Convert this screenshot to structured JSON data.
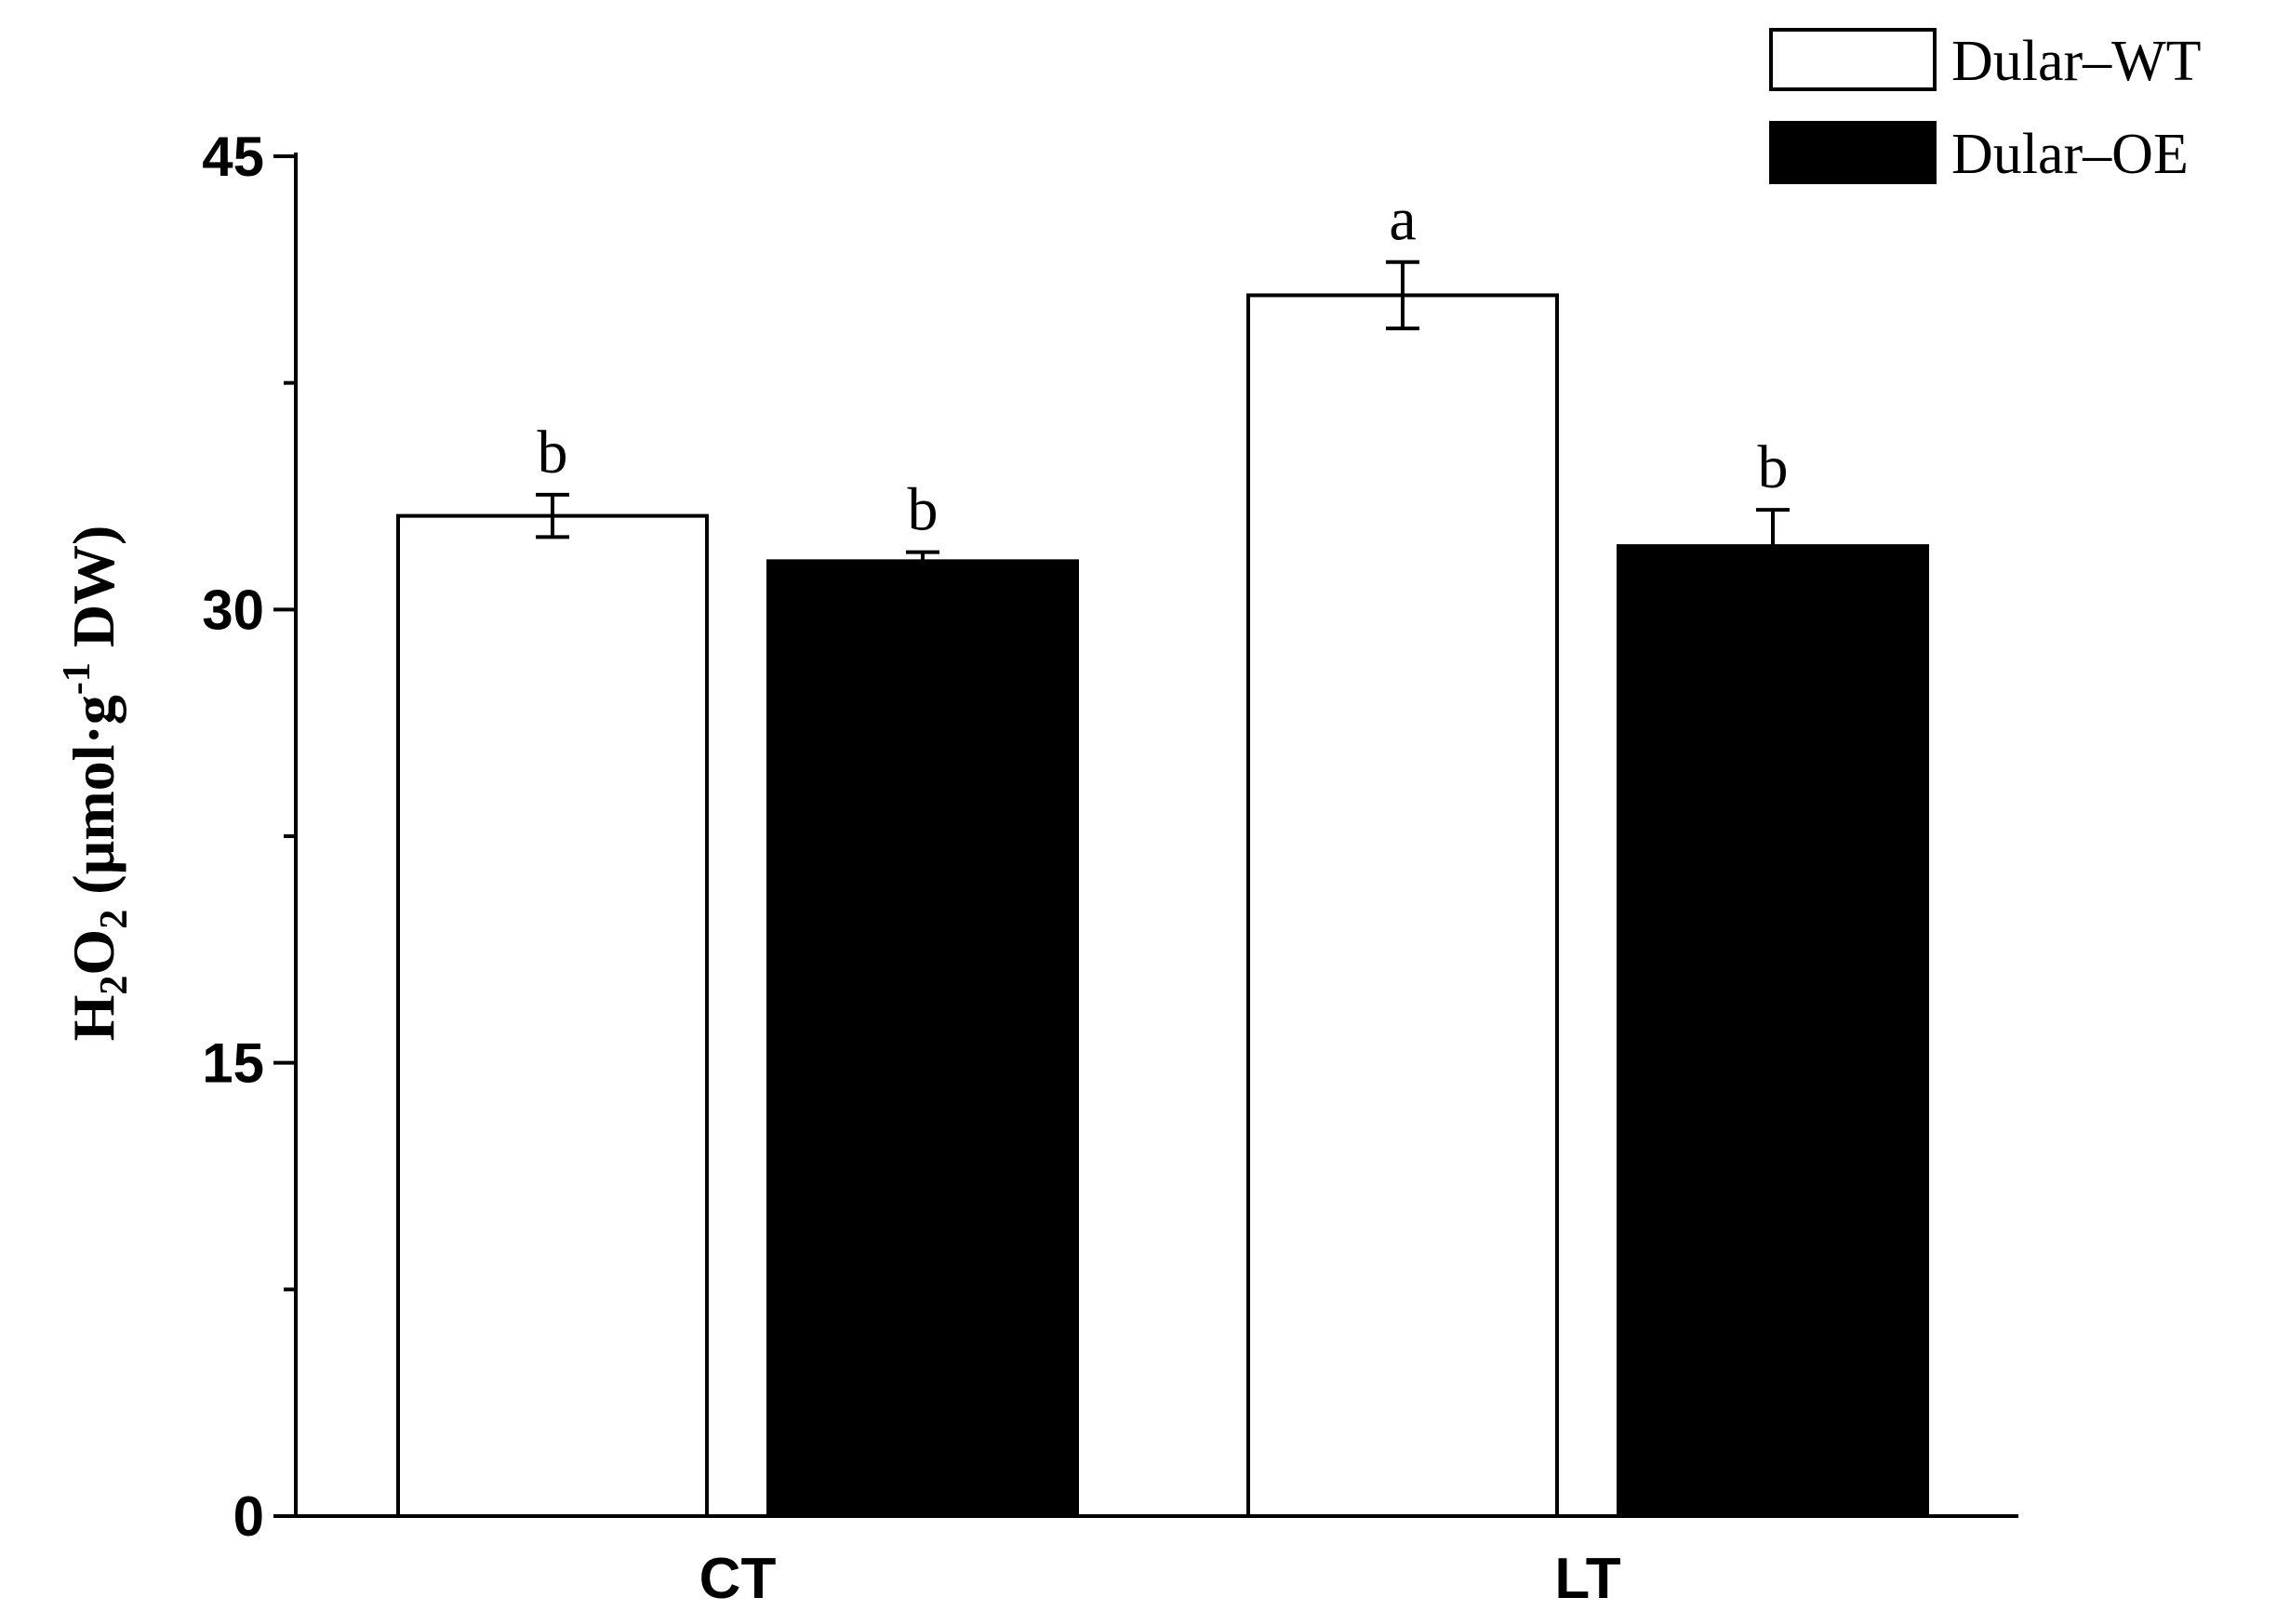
{
  "chart_data": {
    "type": "bar",
    "categories": [
      "CT",
      "LT"
    ],
    "series": [
      {
        "name": "Dular–WT",
        "fill": "#ffffff",
        "values": [
          33.1,
          40.4
        ],
        "errors": [
          0.7,
          1.1
        ],
        "sig": [
          "b",
          "a"
        ]
      },
      {
        "name": "Dular–OE",
        "fill": "#000000",
        "values": [
          31.6,
          32.1
        ],
        "errors": [
          0.3,
          1.2
        ],
        "sig": [
          "b",
          "b"
        ]
      }
    ],
    "ylabel": {
      "main": "H",
      "sub1": "2",
      "mid": "O",
      "sub2": "2",
      "unit_open": " (µmol·g",
      "sup": "-1",
      "unit_close": " DW)"
    },
    "ylim": [
      0,
      45
    ],
    "yticks": [
      0,
      15,
      30,
      45
    ],
    "yminor": [
      7.5,
      22.5,
      37.5
    ],
    "grid": false,
    "legend_position": "top-right"
  }
}
